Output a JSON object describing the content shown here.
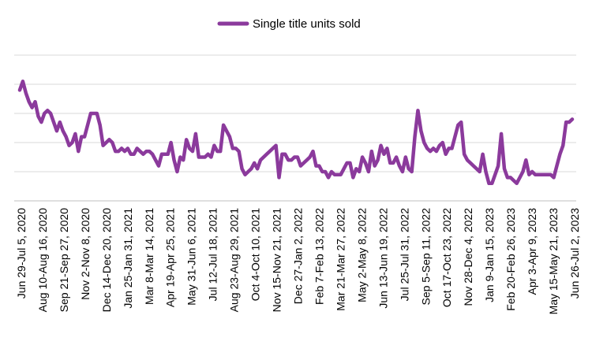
{
  "chart_data": {
    "type": "line",
    "title": "",
    "xlabel": "",
    "ylabel": "",
    "ylim": [
      0,
      5
    ],
    "grid": true,
    "legend_position": "top-center",
    "colors": {
      "series": "#8B3A9C",
      "grid": "#d9d9d9",
      "axis": "#bfbfbf"
    },
    "x_tick_labels": [
      "Jun 29-Jul 5, 2020",
      "Aug 10-Aug 16, 2020",
      "Sep 21-Sep 27, 2020",
      "Nov 2-Nov 8, 2020",
      "Dec 14-Dec 20, 2020",
      "Jan 25-Jan 31, 2021",
      "Mar 8-Mar 14, 2021",
      "Apr 19-Apr 25, 2021",
      "May 31-Jun 6, 2021",
      "Jul 12-Jul 18, 2021",
      "Aug 23-Aug 29, 2021",
      "Oct 4-Oct 10, 2021",
      "Nov 15-Nov 21, 2021",
      "Dec 27-Jan 2, 2022",
      "Feb 7-Feb 13, 2022",
      "Mar 21-Mar 27, 2022",
      "May 2-May 8, 2022",
      "Jun 13-Jun 19, 2022",
      "Jul 25-Jul 31, 2022",
      "Sep 5-Sep 11, 2022",
      "Oct 17-Oct 23, 2022",
      "Nov 28-Dec 4, 2022",
      "Jan 9-Jan 15, 2023",
      "Feb 20-Feb 26, 2023",
      "Apr 3-Apr 9, 2023",
      "May 15-May 21, 2023",
      "Jun 26-Jul 2, 2023"
    ],
    "series": [
      {
        "name": "Single title units sold",
        "values": [
          3.8,
          4.1,
          3.7,
          3.4,
          3.2,
          3.4,
          2.9,
          2.7,
          3.0,
          3.1,
          3.0,
          2.7,
          2.4,
          2.7,
          2.4,
          2.2,
          1.9,
          2.0,
          2.3,
          1.7,
          2.2,
          2.2,
          2.6,
          3.0,
          3.0,
          3.0,
          2.6,
          1.9,
          2.0,
          2.1,
          2.0,
          1.7,
          1.7,
          1.8,
          1.7,
          1.8,
          1.6,
          1.6,
          1.8,
          1.7,
          1.6,
          1.7,
          1.7,
          1.6,
          1.4,
          1.2,
          1.6,
          1.6,
          1.6,
          2.0,
          1.4,
          1.0,
          1.5,
          1.4,
          2.1,
          1.8,
          1.7,
          2.3,
          1.5,
          1.5,
          1.5,
          1.6,
          1.5,
          1.9,
          1.7,
          1.7,
          2.6,
          2.4,
          2.2,
          1.8,
          1.8,
          1.7,
          1.1,
          0.9,
          1.0,
          1.1,
          1.3,
          1.1,
          1.4,
          1.5,
          1.6,
          1.7,
          1.8,
          1.9,
          0.8,
          1.6,
          1.6,
          1.4,
          1.4,
          1.5,
          1.5,
          1.2,
          1.3,
          1.4,
          1.5,
          1.7,
          1.2,
          1.2,
          1.0,
          1.0,
          0.8,
          1.0,
          0.9,
          0.9,
          0.9,
          1.1,
          1.3,
          1.3,
          0.8,
          1.1,
          1.0,
          1.5,
          1.3,
          1.0,
          1.7,
          1.2,
          1.4,
          1.9,
          1.6,
          1.8,
          1.3,
          1.3,
          1.5,
          1.2,
          1.0,
          1.5,
          1.1,
          1.0,
          2.2,
          3.1,
          2.4,
          2.0,
          1.8,
          1.7,
          1.8,
          1.7,
          1.9,
          2.0,
          1.6,
          1.8,
          1.8,
          2.2,
          2.6,
          2.7,
          1.6,
          1.4,
          1.3,
          1.2,
          1.1,
          1.0,
          1.6,
          1.0,
          0.6,
          0.6,
          0.9,
          1.2,
          2.3,
          1.1,
          0.8,
          0.8,
          0.7,
          0.6,
          0.8,
          1.0,
          1.4,
          0.9,
          1.0,
          0.9,
          0.9,
          0.9,
          0.9,
          0.9,
          0.9,
          0.8,
          1.2,
          1.6,
          1.9,
          2.7,
          2.7,
          2.8
        ]
      }
    ]
  }
}
